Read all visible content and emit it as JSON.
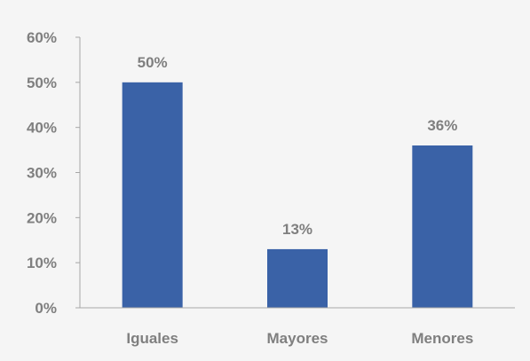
{
  "chart_data": {
    "type": "bar",
    "categories": [
      "Iguales",
      "Mayores",
      "Menores"
    ],
    "values": [
      50,
      13,
      36
    ],
    "data_labels": [
      "50%",
      "13%",
      "36%"
    ],
    "ylim": [
      0,
      60
    ],
    "y_ticks": [
      {
        "value": 0,
        "label": "0%"
      },
      {
        "value": 10,
        "label": "10%"
      },
      {
        "value": 20,
        "label": "20%"
      },
      {
        "value": 30,
        "label": "30%"
      },
      {
        "value": 40,
        "label": "40%"
      },
      {
        "value": 50,
        "label": "50%"
      },
      {
        "value": 60,
        "label": "60%"
      }
    ],
    "grid": false,
    "legend": "none",
    "colors": {
      "bar": "#3a62a7",
      "axis": "#a6a6a6",
      "text": "#7f7f7f",
      "background": "#f5f5f5"
    }
  }
}
